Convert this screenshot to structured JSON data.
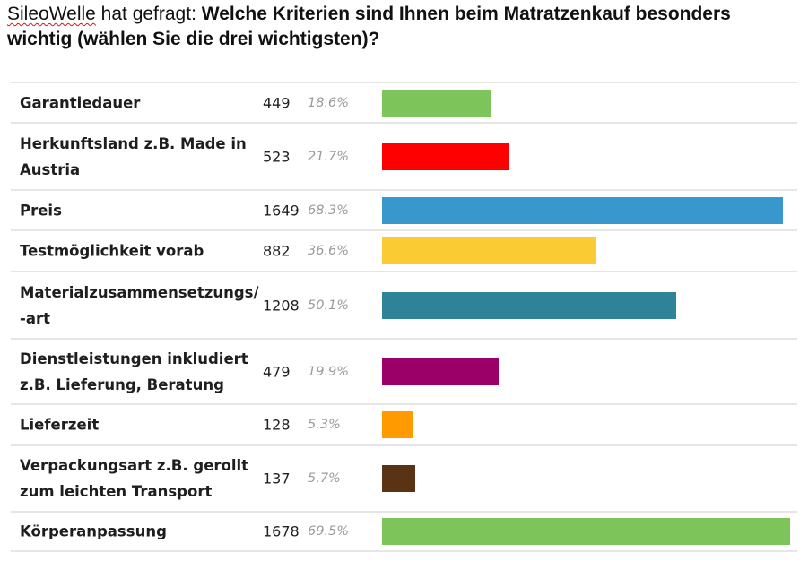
{
  "header": {
    "brand": "SileoWelle",
    "asked": " hat gefragt: ",
    "question": "Welche Kriterien sind Ihnen beim Matratzenkauf besonders wichtig (wählen Sie die drei wichtigsten)?"
  },
  "chart_data": {
    "type": "bar",
    "orientation": "horizontal",
    "title": "Welche Kriterien sind Ihnen beim Matratzenkauf besonders wichtig (wählen Sie die drei wichtigsten)?",
    "xlabel": "",
    "ylabel": "",
    "xlim": [
      0,
      1678
    ],
    "categories": [
      "Garantiedauer",
      "Herkunftsland z.B. Made in Austria",
      "Preis",
      "Testmöglichkeit vorab",
      "Materialzusammensetzungs/ -art",
      "Dienstleistungen inkludiert z.B. Lieferung, Beratung",
      "Lieferzeit",
      "Verpackungsart z.B. gerollt zum leichten Transport",
      "Körperanpassung"
    ],
    "values": [
      449,
      523,
      1649,
      882,
      1208,
      479,
      128,
      137,
      1678
    ],
    "percentages": [
      "18.6%",
      "21.7%",
      "68.3%",
      "36.6%",
      "50.1%",
      "19.9%",
      "5.3%",
      "5.7%",
      "69.5%"
    ],
    "colors": [
      "#7dc55a",
      "#ff0000",
      "#3897cc",
      "#fbcb34",
      "#2e8399",
      "#9b0068",
      "#ff9a00",
      "#5a3214",
      "#7dc55a"
    ]
  }
}
